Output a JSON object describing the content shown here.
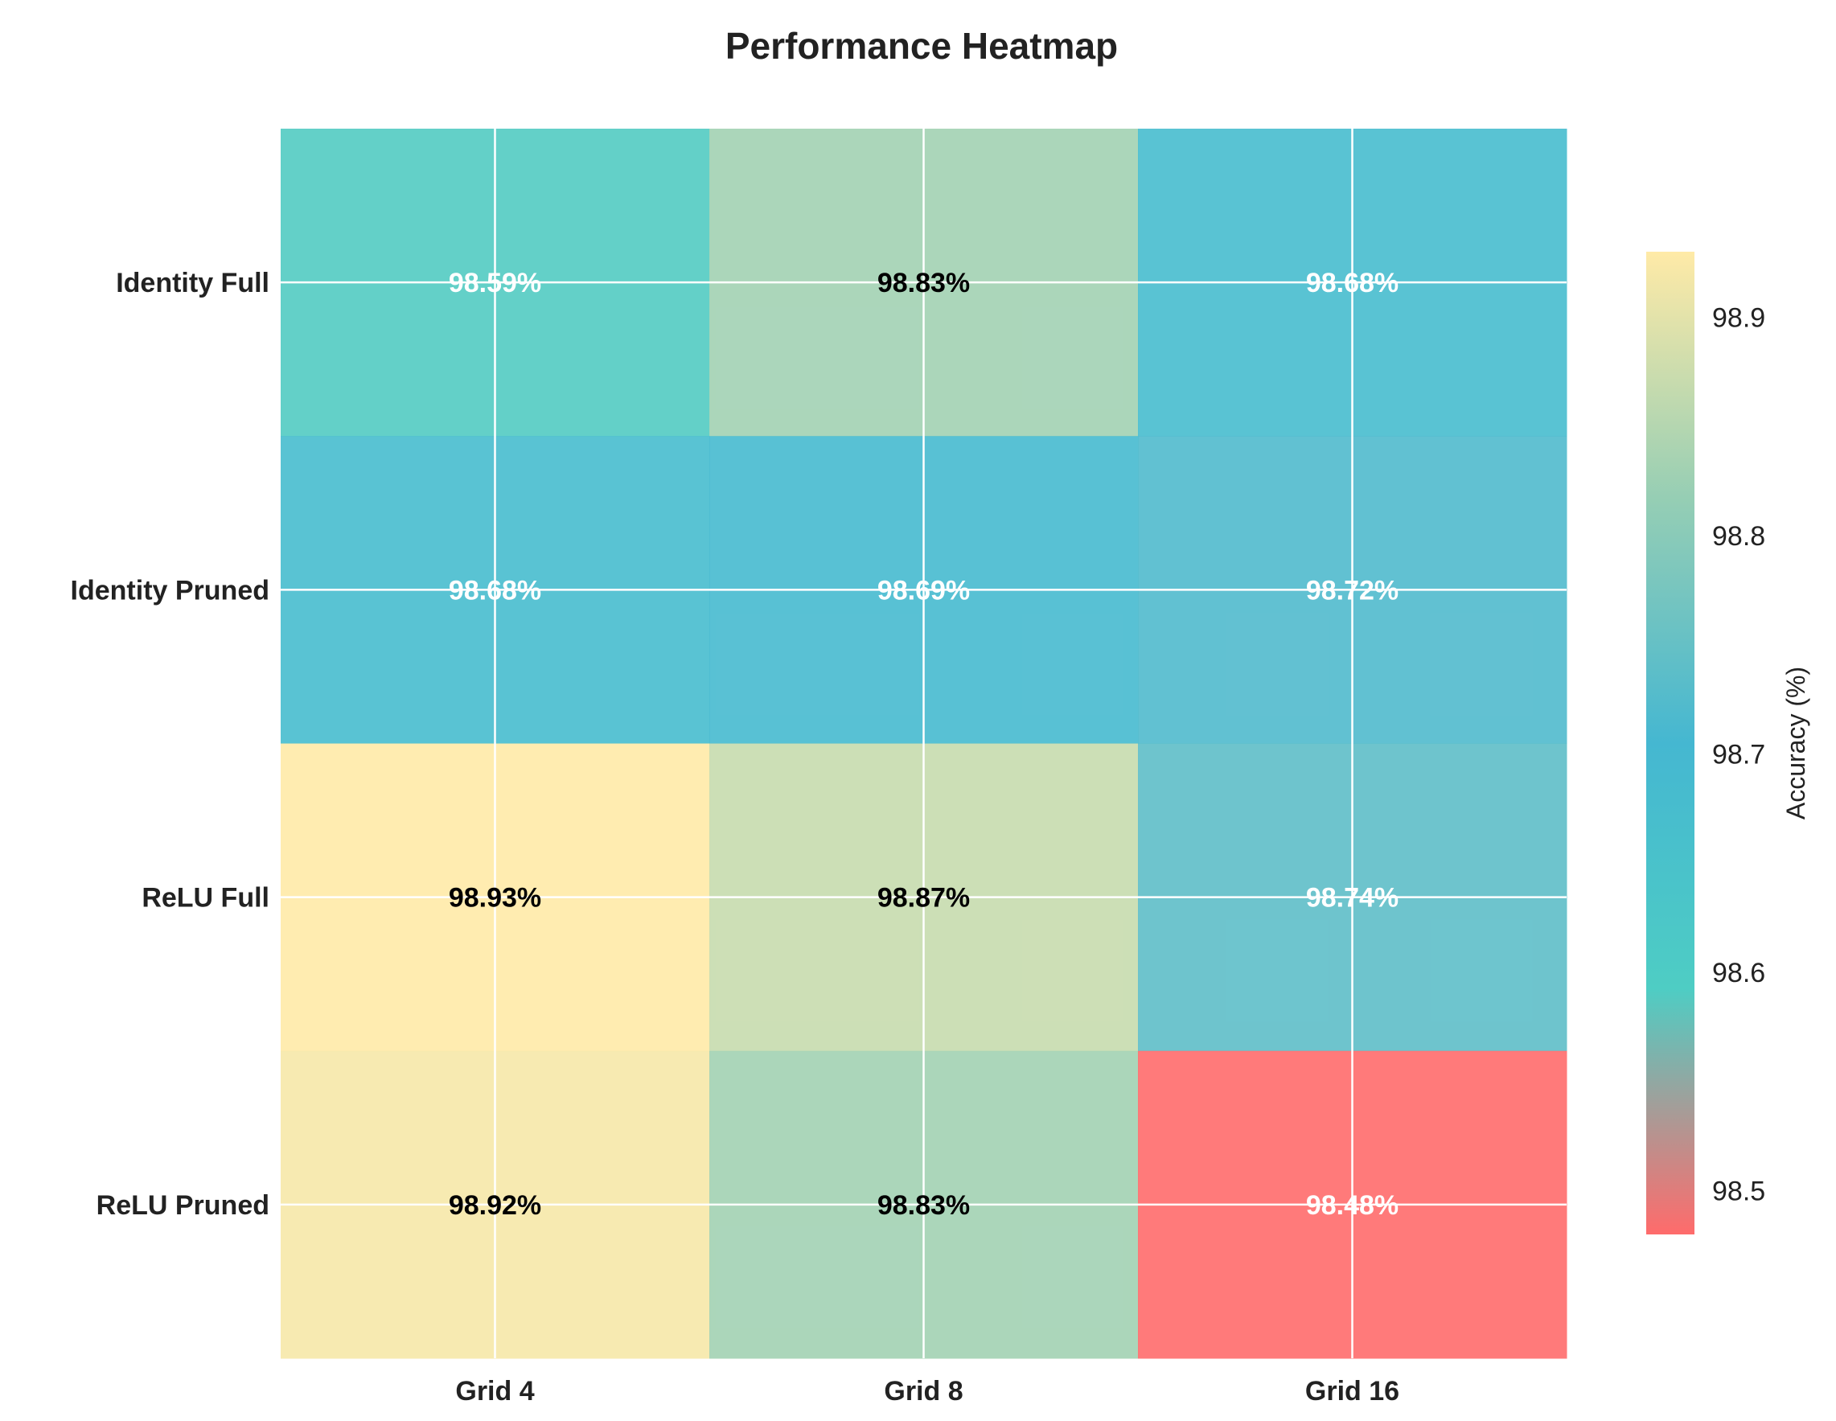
{
  "chart_data": {
    "type": "heatmap",
    "title": "Performance Heatmap",
    "columns": [
      "Grid 4",
      "Grid 8",
      "Grid 16"
    ],
    "rows": [
      "Identity Full",
      "Identity Pruned",
      "ReLU Full",
      "ReLU Pruned"
    ],
    "values": [
      [
        98.59,
        98.83,
        98.68
      ],
      [
        98.68,
        98.69,
        98.72
      ],
      [
        98.93,
        98.87,
        98.74
      ],
      [
        98.92,
        98.83,
        98.48
      ]
    ],
    "cell_labels": [
      [
        "98.59%",
        "98.83%",
        "98.68%"
      ],
      [
        "98.68%",
        "98.69%",
        "98.72%"
      ],
      [
        "98.93%",
        "98.87%",
        "98.74%"
      ],
      [
        "98.92%",
        "98.83%",
        "98.48%"
      ]
    ],
    "colorbar": {
      "label": "Accuracy (%)",
      "range": [
        98.48,
        98.93
      ],
      "ticks": [
        98.5,
        98.6,
        98.7,
        98.8,
        98.9
      ],
      "tick_labels": [
        "98.5",
        "98.6",
        "98.7",
        "98.8",
        "98.9"
      ],
      "colors": [
        "#ff6b6b",
        "#4ecdc4",
        "#45b7d1",
        "#96ceb4",
        "#ffeaa7"
      ]
    },
    "grid": true,
    "label_colors": {
      "light": "#ffffff",
      "dark": "#000000"
    }
  }
}
